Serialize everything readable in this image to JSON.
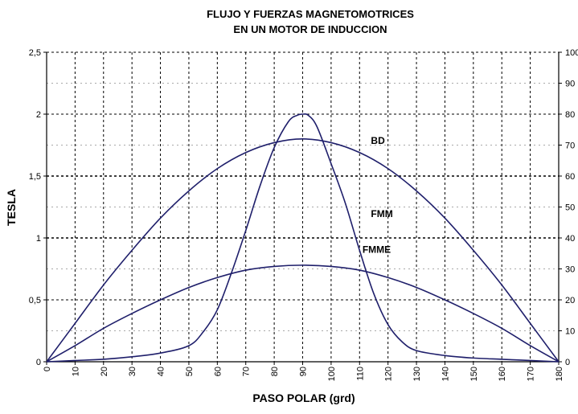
{
  "chart_data": {
    "type": "line",
    "title": [
      "FLUJO Y FUERZAS MAGNETOMOTRICES",
      "EN UN MOTOR DE INDUCCION"
    ],
    "xlabel": "PASO POLAR (grd)",
    "ylabel": "TESLA",
    "xlim": [
      0,
      180
    ],
    "ylim": [
      0,
      2.5
    ],
    "y2lim": [
      0,
      100
    ],
    "x_ticks": [
      0,
      10,
      20,
      30,
      40,
      50,
      60,
      70,
      80,
      90,
      100,
      110,
      120,
      130,
      140,
      150,
      160,
      170,
      180
    ],
    "x_tick_labels": [
      "0",
      "10",
      "20",
      "30",
      "40",
      "50",
      "60",
      "70",
      "80",
      "90",
      "100",
      "110",
      "120",
      "130",
      "140",
      "150",
      "160",
      "170",
      "180"
    ],
    "y_ticks": [
      0,
      0.5,
      1,
      1.5,
      2,
      2.5
    ],
    "y_tick_labels": [
      "0",
      "0,5",
      "1",
      "1,5",
      "2",
      "2,5"
    ],
    "y2_ticks": [
      0,
      10,
      20,
      30,
      40,
      50,
      60,
      70,
      80,
      90,
      100
    ],
    "y2_tick_labels": [
      "0",
      "10",
      "20",
      "30",
      "40",
      "50",
      "60",
      "70",
      "80",
      "90",
      "100"
    ],
    "grid": true,
    "legend": "none",
    "line_color": "#1f1f6b",
    "series": [
      {
        "name": "BD",
        "x": [
          0,
          10,
          20,
          30,
          40,
          50,
          60,
          70,
          80,
          90,
          100,
          110,
          120,
          130,
          140,
          150,
          160,
          170,
          180
        ],
        "y": [
          0,
          0.31,
          0.62,
          0.9,
          1.16,
          1.38,
          1.56,
          1.69,
          1.77,
          1.8,
          1.77,
          1.69,
          1.56,
          1.38,
          1.16,
          0.9,
          0.62,
          0.31,
          0
        ]
      },
      {
        "name": "FMM",
        "x": [
          0,
          10,
          20,
          30,
          40,
          50,
          55,
          60,
          65,
          70,
          75,
          80,
          85,
          88,
          90,
          92,
          95,
          100,
          105,
          110,
          115,
          120,
          125,
          130,
          140,
          150,
          160,
          170,
          180
        ],
        "y": [
          0,
          0.01,
          0.02,
          0.04,
          0.07,
          0.13,
          0.24,
          0.42,
          0.72,
          1.06,
          1.42,
          1.73,
          1.94,
          1.99,
          2.0,
          1.99,
          1.9,
          1.6,
          1.28,
          0.9,
          0.55,
          0.3,
          0.16,
          0.09,
          0.05,
          0.03,
          0.02,
          0.01,
          0
        ]
      },
      {
        "name": "FMME",
        "x": [
          0,
          10,
          20,
          30,
          40,
          50,
          60,
          70,
          80,
          90,
          100,
          110,
          120,
          130,
          140,
          150,
          160,
          170,
          180
        ],
        "y": [
          0,
          0.13,
          0.27,
          0.39,
          0.5,
          0.6,
          0.68,
          0.74,
          0.77,
          0.78,
          0.77,
          0.74,
          0.68,
          0.6,
          0.5,
          0.39,
          0.27,
          0.13,
          0
        ]
      }
    ],
    "annotations": [
      {
        "text": "BD",
        "x": 114,
        "y": 1.76
      },
      {
        "text": "FMM",
        "x": 114,
        "y": 1.17
      },
      {
        "text": "FMME",
        "x": 111,
        "y": 0.88
      }
    ]
  }
}
